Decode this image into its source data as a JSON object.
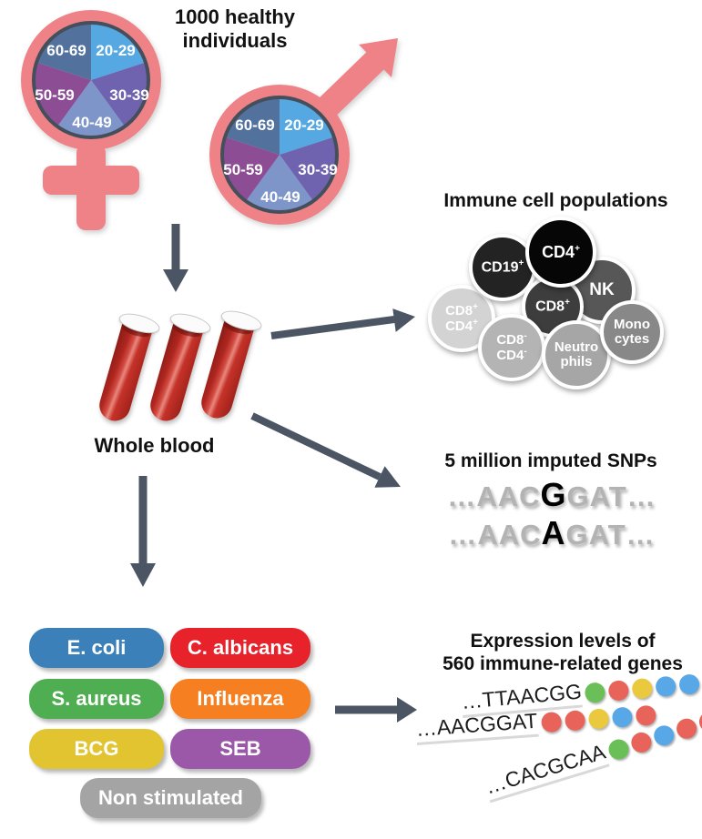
{
  "colors": {
    "gender_symbol": "#ee8287",
    "pie_border": "#454f5b",
    "arrow": "#4b5563",
    "text": "#111111"
  },
  "cohort": {
    "title_line1": "1000 healthy",
    "title_line2": "individuals",
    "age_pie": {
      "slices": [
        {
          "label": "20-29",
          "color": "#55a8e2"
        },
        {
          "label": "30-39",
          "color": "#6f63af"
        },
        {
          "label": "40-49",
          "color": "#7d95c9"
        },
        {
          "label": "50-59",
          "color": "#8c4d94"
        },
        {
          "label": "60-69",
          "color": "#52719d"
        }
      ]
    }
  },
  "blood": {
    "label": "Whole blood",
    "tube_count": 3,
    "blood_color": "#b2251d"
  },
  "immune_cells": {
    "title": "Immune cell populations",
    "cells": [
      {
        "name": "CD8+CD4+",
        "lines": [
          {
            "text": "CD8",
            "sign": "+"
          },
          {
            "text": "CD4",
            "sign": "+"
          }
        ],
        "color": "#d3d3d3"
      },
      {
        "name": "CD19+",
        "lines": [
          {
            "text": "CD19",
            "sign": "+"
          }
        ],
        "color": "#232323"
      },
      {
        "name": "NK",
        "lines": [
          {
            "text": "NK",
            "sign": ""
          }
        ],
        "color": "#575757"
      },
      {
        "name": "CD8+",
        "lines": [
          {
            "text": "CD8",
            "sign": "+"
          }
        ],
        "color": "#3d3d3d"
      },
      {
        "name": "CD4+",
        "lines": [
          {
            "text": "CD4",
            "sign": "+"
          }
        ],
        "color": "#060606"
      },
      {
        "name": "CD8-CD4-",
        "lines": [
          {
            "text": "CD8",
            "sign": "-"
          },
          {
            "text": "CD4",
            "sign": "-"
          }
        ],
        "color": "#b4b4b4"
      },
      {
        "name": "Neutrophils",
        "lines": [
          {
            "text": "Neutro",
            "sign": ""
          },
          {
            "text": "phils",
            "sign": ""
          }
        ],
        "color": "#a6a6a6"
      },
      {
        "name": "Monocytes",
        "lines": [
          {
            "text": "Mono",
            "sign": ""
          },
          {
            "text": "cytes",
            "sign": ""
          }
        ],
        "color": "#888888"
      }
    ]
  },
  "snps": {
    "title": "5 million imputed SNPs",
    "sequences": [
      {
        "pre": "…AAC",
        "snp": "G",
        "post": "GAT…"
      },
      {
        "pre": "…AAC",
        "snp": "A",
        "post": "GAT…"
      }
    ]
  },
  "stimuli": {
    "items": [
      {
        "label": "E. coli",
        "color": "#3c80ba"
      },
      {
        "label": "C. albicans",
        "color": "#e8222b"
      },
      {
        "label": "S. aureus",
        "color": "#4fae52"
      },
      {
        "label": "Influenza",
        "color": "#f57f21"
      },
      {
        "label": "BCG",
        "color": "#e2c430"
      },
      {
        "label": "SEB",
        "color": "#9c58a8"
      },
      {
        "label": "Non stimulated",
        "color": "#a4a4a4"
      }
    ]
  },
  "expression": {
    "title_line1": "Expression levels of",
    "title_line2": "560 immune-related genes",
    "dot_palette": {
      "green": "#6bbf59",
      "red": "#e8635a",
      "yellow": "#eac93e",
      "blue": "#58a8e8"
    },
    "reads": [
      {
        "seq": "…TTAACGG",
        "dots": [
          "green",
          "red",
          "yellow",
          "blue",
          "blue"
        ]
      },
      {
        "seq": "…AACGGAT",
        "dots": [
          "red",
          "red",
          "yellow",
          "blue",
          "red"
        ]
      },
      {
        "seq": "…CACGCAA",
        "dots": [
          "green",
          "red",
          "blue",
          "red",
          "red"
        ]
      }
    ]
  }
}
